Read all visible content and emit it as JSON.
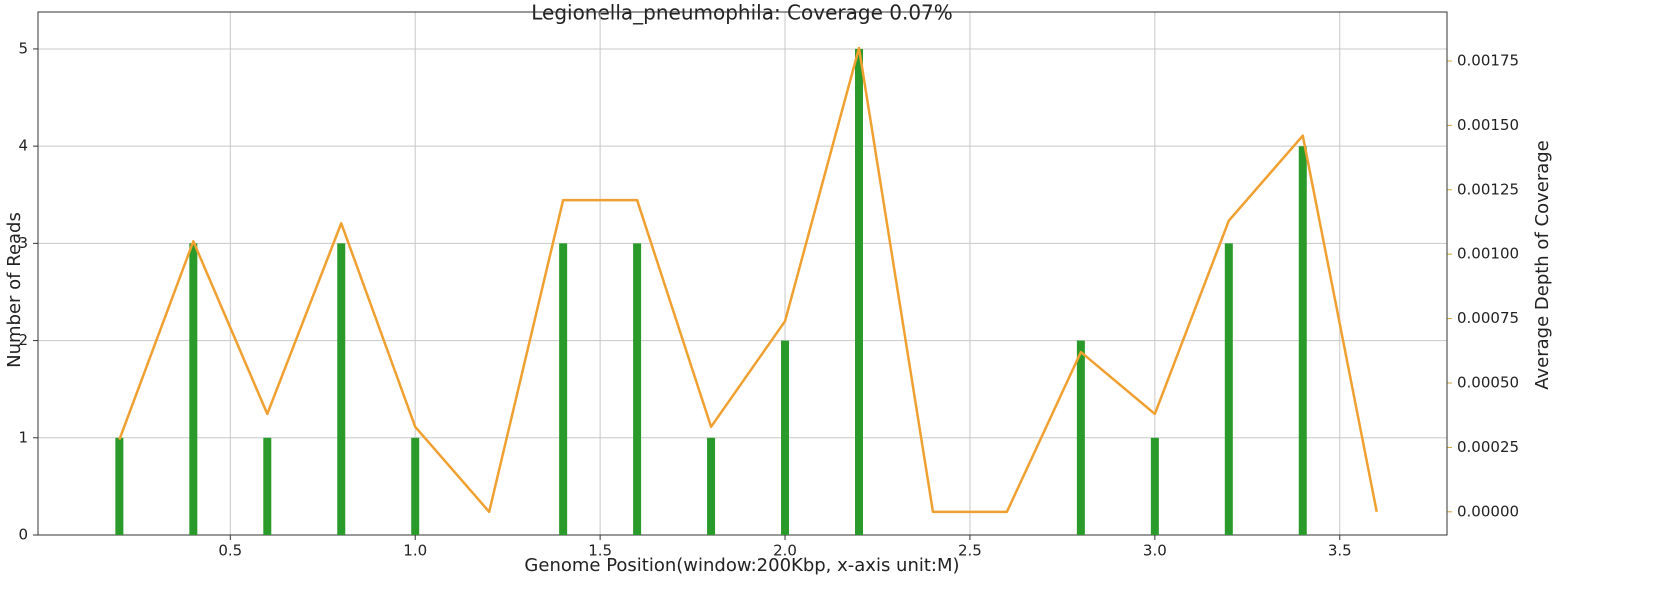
{
  "chart_data": {
    "type": "bar",
    "title": "Legionella_pneumophila: Coverage 0.07%",
    "x_label": "Genome Position(window:200Kbp, x-axis unit:M)",
    "y_label": "Number of Reads",
    "y2_label": "Average Depth of Coverage",
    "x": [
      0.2,
      0.4,
      0.6,
      0.8,
      1.0,
      1.2,
      1.4,
      1.6,
      1.8,
      2.0,
      2.2,
      2.4,
      2.6,
      2.8,
      3.0,
      3.2,
      3.4,
      3.6
    ],
    "series": [
      {
        "type": "bar",
        "color": "#2a9a2a",
        "values": [
          1,
          3,
          1,
          3,
          1,
          0,
          3,
          3,
          1,
          2,
          5,
          0,
          0,
          2,
          1,
          3,
          4,
          0
        ]
      },
      {
        "type": "line",
        "axis": "y2",
        "color": "#f0a030",
        "values": [
          0.00028,
          0.00105,
          0.00038,
          0.00112,
          0.00033,
          0,
          0.00121,
          0.00121,
          0.00033,
          0.00074,
          0.0018,
          0,
          0,
          0.00062,
          0.00038,
          0.00113,
          0.00146,
          0
        ]
      }
    ],
    "xlim": [
      -0.02,
      3.79
    ],
    "xticks": [
      0.5,
      {
        "value": 1,
        "label": "1.0"
      },
      1.5,
      {
        "value": 2,
        "label": "2.0"
      },
      2.5,
      {
        "value": 3,
        "label": "3.0"
      },
      3.5
    ],
    "ylim": [
      0,
      5.38
    ],
    "yticks": [
      0,
      1,
      2,
      3,
      4,
      5
    ],
    "y2lim": [
      -9e-05,
      0.00194
    ],
    "y2ticks": [
      {
        "value": 0,
        "label": "0.00000"
      },
      {
        "value": 0.00025,
        "label": "0.00025"
      },
      {
        "value": 0.0005,
        "label": "0.00050"
      },
      {
        "value": 0.00075,
        "label": "0.00075"
      },
      {
        "value": 0.001,
        "label": "0.00100"
      },
      {
        "value": 0.00125,
        "label": "0.00125"
      },
      {
        "value": 0.0015,
        "label": "0.00150"
      },
      {
        "value": 0.00175,
        "label": "0.00175"
      }
    ],
    "y2_color": "#d4a23a",
    "grid": true
  }
}
